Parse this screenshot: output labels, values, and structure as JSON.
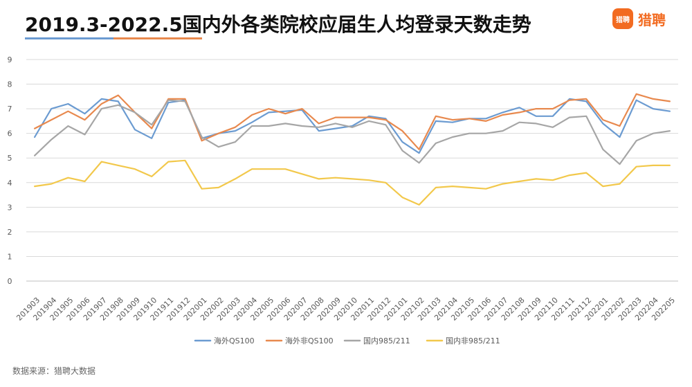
{
  "title": "2019.3-2022.5国内外各类院校应届生人均登录天数走势",
  "logo": {
    "mark_text": "猎聘",
    "text": "猎聘",
    "color": "#f26b21",
    "icon": "liepin-logo-icon"
  },
  "source": "数据来源：猎聘大数据",
  "colors": {
    "title_underline_blue": "#6b9bd1",
    "title_underline_orange": "#e8894e"
  },
  "chart_data": {
    "type": "line",
    "categories": [
      "201903",
      "201904",
      "201905",
      "201906",
      "201907",
      "201908",
      "201909",
      "201910",
      "201911",
      "201912",
      "202001",
      "202002",
      "202003",
      "202004",
      "202005",
      "202006",
      "202007",
      "202008",
      "202009",
      "202010",
      "202011",
      "202012",
      "202101",
      "202102",
      "202103",
      "202104",
      "202105",
      "202106",
      "202107",
      "202108",
      "202109",
      "202110",
      "202111",
      "202112",
      "202201",
      "202202",
      "202203",
      "202204",
      "202205"
    ],
    "ylim": [
      0,
      9
    ],
    "yticks": [
      "0",
      "1",
      "2",
      "3",
      "4",
      "5",
      "6",
      "7",
      "8",
      "9"
    ],
    "grid": true,
    "legend_position": "bottom",
    "series": [
      {
        "name": "海外QS100",
        "color": "#6b9bd1",
        "values": [
          5.85,
          7.0,
          7.2,
          6.8,
          7.4,
          7.3,
          6.15,
          5.8,
          7.25,
          7.35,
          5.8,
          6.0,
          6.1,
          6.45,
          6.85,
          6.9,
          6.95,
          6.1,
          6.2,
          6.3,
          6.7,
          6.6,
          5.65,
          5.2,
          6.5,
          6.45,
          6.6,
          6.6,
          6.85,
          7.05,
          6.7,
          6.7,
          7.4,
          7.3,
          6.4,
          5.85,
          7.35,
          7.0,
          6.9
        ]
      },
      {
        "name": "海外非QS100",
        "color": "#e8894e",
        "values": [
          6.2,
          6.55,
          6.9,
          6.55,
          7.2,
          7.55,
          6.85,
          6.2,
          7.4,
          7.4,
          5.7,
          6.0,
          6.25,
          6.75,
          7.0,
          6.8,
          7.0,
          6.4,
          6.65,
          6.65,
          6.65,
          6.55,
          6.1,
          5.35,
          6.7,
          6.55,
          6.6,
          6.5,
          6.75,
          6.85,
          7.0,
          7.0,
          7.35,
          7.4,
          6.55,
          6.3,
          7.6,
          7.4,
          7.3
        ]
      },
      {
        "name": "国内985/211",
        "color": "#a6a6a6",
        "values": [
          5.1,
          5.75,
          6.3,
          5.95,
          7.0,
          7.15,
          6.85,
          6.35,
          7.35,
          7.3,
          5.85,
          5.45,
          5.65,
          6.3,
          6.3,
          6.4,
          6.3,
          6.25,
          6.4,
          6.25,
          6.5,
          6.35,
          5.3,
          4.8,
          5.6,
          5.85,
          6.0,
          6.0,
          6.1,
          6.45,
          6.4,
          6.25,
          6.65,
          6.7,
          5.35,
          4.75,
          5.7,
          6.0,
          6.1
        ]
      },
      {
        "name": "国内非985/211",
        "color": "#f2c84b",
        "values": [
          3.85,
          3.95,
          4.2,
          4.05,
          4.85,
          4.7,
          4.55,
          4.25,
          4.85,
          4.9,
          3.75,
          3.8,
          4.15,
          4.55,
          4.55,
          4.55,
          4.35,
          4.15,
          4.2,
          4.15,
          4.1,
          4.0,
          3.4,
          3.1,
          3.8,
          3.85,
          3.8,
          3.75,
          3.95,
          4.05,
          4.15,
          4.1,
          4.3,
          4.4,
          3.85,
          3.95,
          4.65,
          4.7,
          4.7
        ]
      }
    ]
  }
}
